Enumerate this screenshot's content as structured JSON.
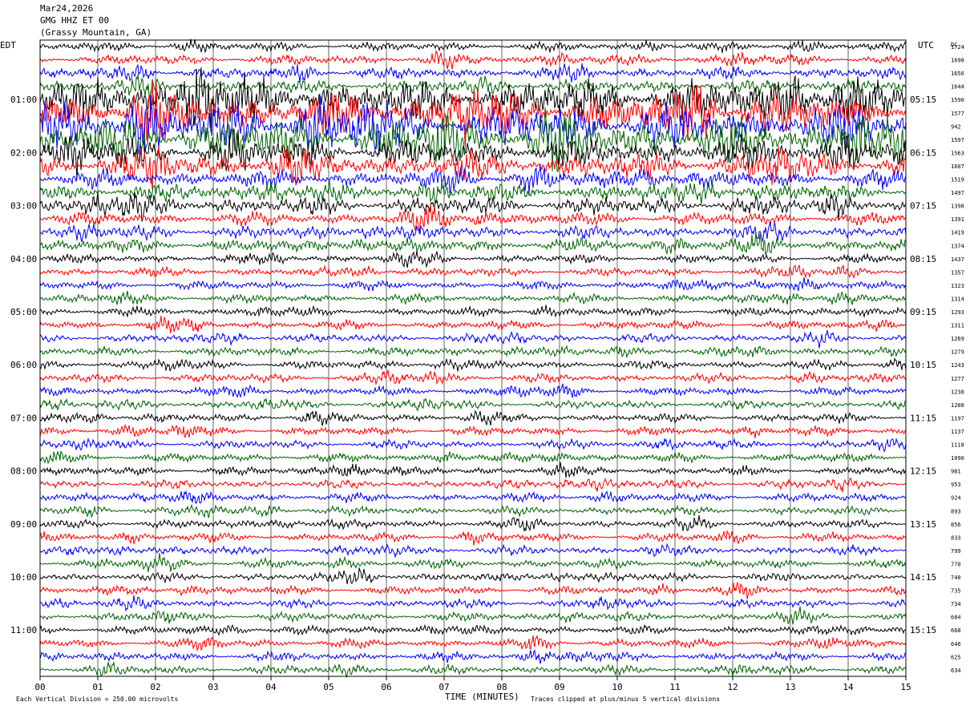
{
  "header": {
    "date": "Mar24,2026",
    "station": "GMG HHZ ET 00",
    "location": "(Grassy Mountain, GA)"
  },
  "labels": {
    "left_tz": "EDT",
    "right_tz": "UTC",
    "dc_header": "DC",
    "x_axis_title": "TIME (MINUTES)",
    "footer_left": "Each Vertical Division =  250.00 microvolts",
    "footer_right": "Traces clipped at plus/minus 5 vertical divisions"
  },
  "colors": {
    "cycle": [
      "#000000",
      "#ff0000",
      "#0000ff",
      "#006400"
    ]
  },
  "chart_data": {
    "type": "line",
    "subtype": "helicorder",
    "x_tick_labels": [
      "00",
      "01",
      "02",
      "03",
      "04",
      "05",
      "06",
      "07",
      "08",
      "09",
      "10",
      "11",
      "12",
      "13",
      "14",
      "15"
    ],
    "xlim": [
      0,
      15
    ],
    "x_unit": "minutes",
    "left_hour_labels": [
      "01:00",
      "02:00",
      "03:00",
      "04:00",
      "05:00",
      "06:00",
      "07:00",
      "08:00",
      "09:00",
      "10:00",
      "11:00"
    ],
    "right_hour_labels": [
      "05:15",
      "06:15",
      "07:15",
      "08:15",
      "09:15",
      "10:15",
      "11:15",
      "12:15",
      "13:15",
      "14:15",
      "15:15"
    ],
    "dc_offsets": [
      1724,
      1698,
      1656,
      1644,
      1590,
      1577,
      942,
      1597,
      1563,
      1607,
      1519,
      1497,
      1398,
      1391,
      1419,
      1374,
      1437,
      1357,
      1323,
      1314,
      1293,
      1311,
      1269,
      1279,
      1243,
      1277,
      1238,
      1208,
      1197,
      1137,
      1118,
      1090,
      981,
      953,
      924,
      893,
      856,
      833,
      799,
      770,
      740,
      735,
      734,
      684,
      668,
      646,
      625,
      634
    ],
    "trace_count": 48,
    "clip_divisions": 5
  }
}
